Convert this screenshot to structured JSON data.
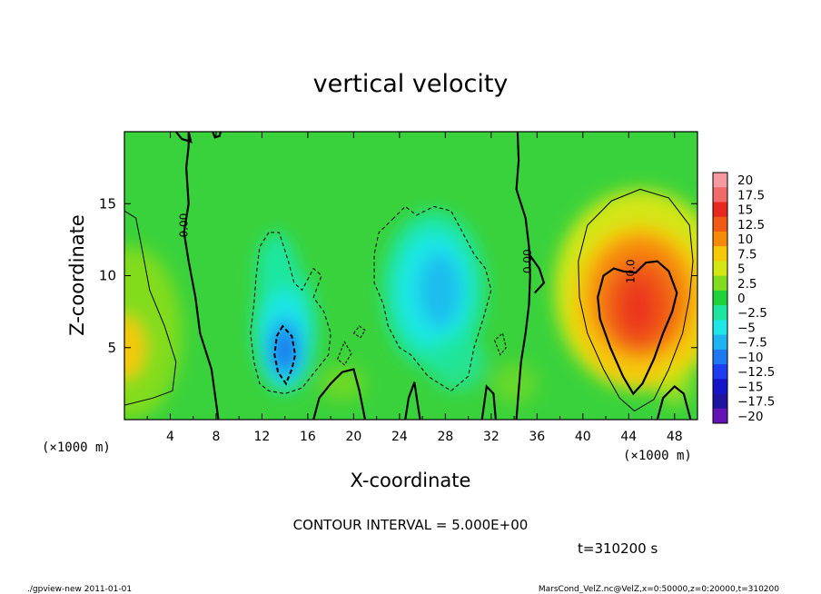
{
  "chart_data": {
    "type": "heatmap",
    "title": "vertical velocity",
    "xlabel": "X-coordinate",
    "ylabel": "Z-coordinate",
    "x_unit_label": "(×1000 m)",
    "y_unit_label": "(×1000 m)",
    "xlim": [
      0,
      50
    ],
    "ylim": [
      0,
      20
    ],
    "x_ticks": [
      4,
      8,
      12,
      16,
      20,
      24,
      28,
      32,
      36,
      40,
      44,
      48
    ],
    "y_ticks": [
      5,
      10,
      15
    ],
    "colorbar": {
      "labels": [
        "20",
        "17.5",
        "15",
        "12.5",
        "10",
        "7.5",
        "5",
        "2.5",
        "0",
        "−2.5",
        "−5",
        "−7.5",
        "−10",
        "−12.5",
        "−15",
        "−17.5",
        "−20"
      ],
      "values": [
        20,
        17.5,
        15,
        12.5,
        10,
        7.5,
        5,
        2.5,
        0,
        -2.5,
        -5,
        -7.5,
        -10,
        -12.5,
        -15,
        -17.5,
        -20
      ],
      "colors": [
        "#f59aa0",
        "#f06a6a",
        "#e8281e",
        "#f05a14",
        "#f58a0a",
        "#f5c80a",
        "#d2e614",
        "#82dc1e",
        "#1ed23c",
        "#1ee6a0",
        "#1ee6e6",
        "#1eb4f0",
        "#1e78f0",
        "#1e3cf0",
        "#1414c8",
        "#1e14a0",
        "#6414b4"
      ]
    },
    "features": [
      {
        "kind": "updraft",
        "x": 45,
        "z": 8,
        "peak": 13
      },
      {
        "kind": "downdraft",
        "x": 14,
        "z": 5,
        "peak": -11
      },
      {
        "kind": "downdraft",
        "x": 27,
        "z": 9,
        "peak": -7
      },
      {
        "kind": "downdraft",
        "x": 13.5,
        "z": 10,
        "peak": -5
      },
      {
        "kind": "warm",
        "x": 0,
        "z": 5,
        "peak": 7
      }
    ],
    "contour_labels": [
      {
        "text": "0.00",
        "x": 5.5,
        "z": 13.5
      },
      {
        "text": "0.00",
        "x": 35.5,
        "z": 11
      },
      {
        "text": "10.0",
        "x": 44.5,
        "z": 10.3
      }
    ],
    "contour_interval_text": "CONTOUR INTERVAL = 5.000E+00",
    "time_text": "t=310200 s"
  },
  "footer": {
    "left": "./gpview-new  2011-01-01",
    "right": "MarsCond_VelZ.nc@VelZ,x=0:50000,z=0:20000,t=310200"
  }
}
